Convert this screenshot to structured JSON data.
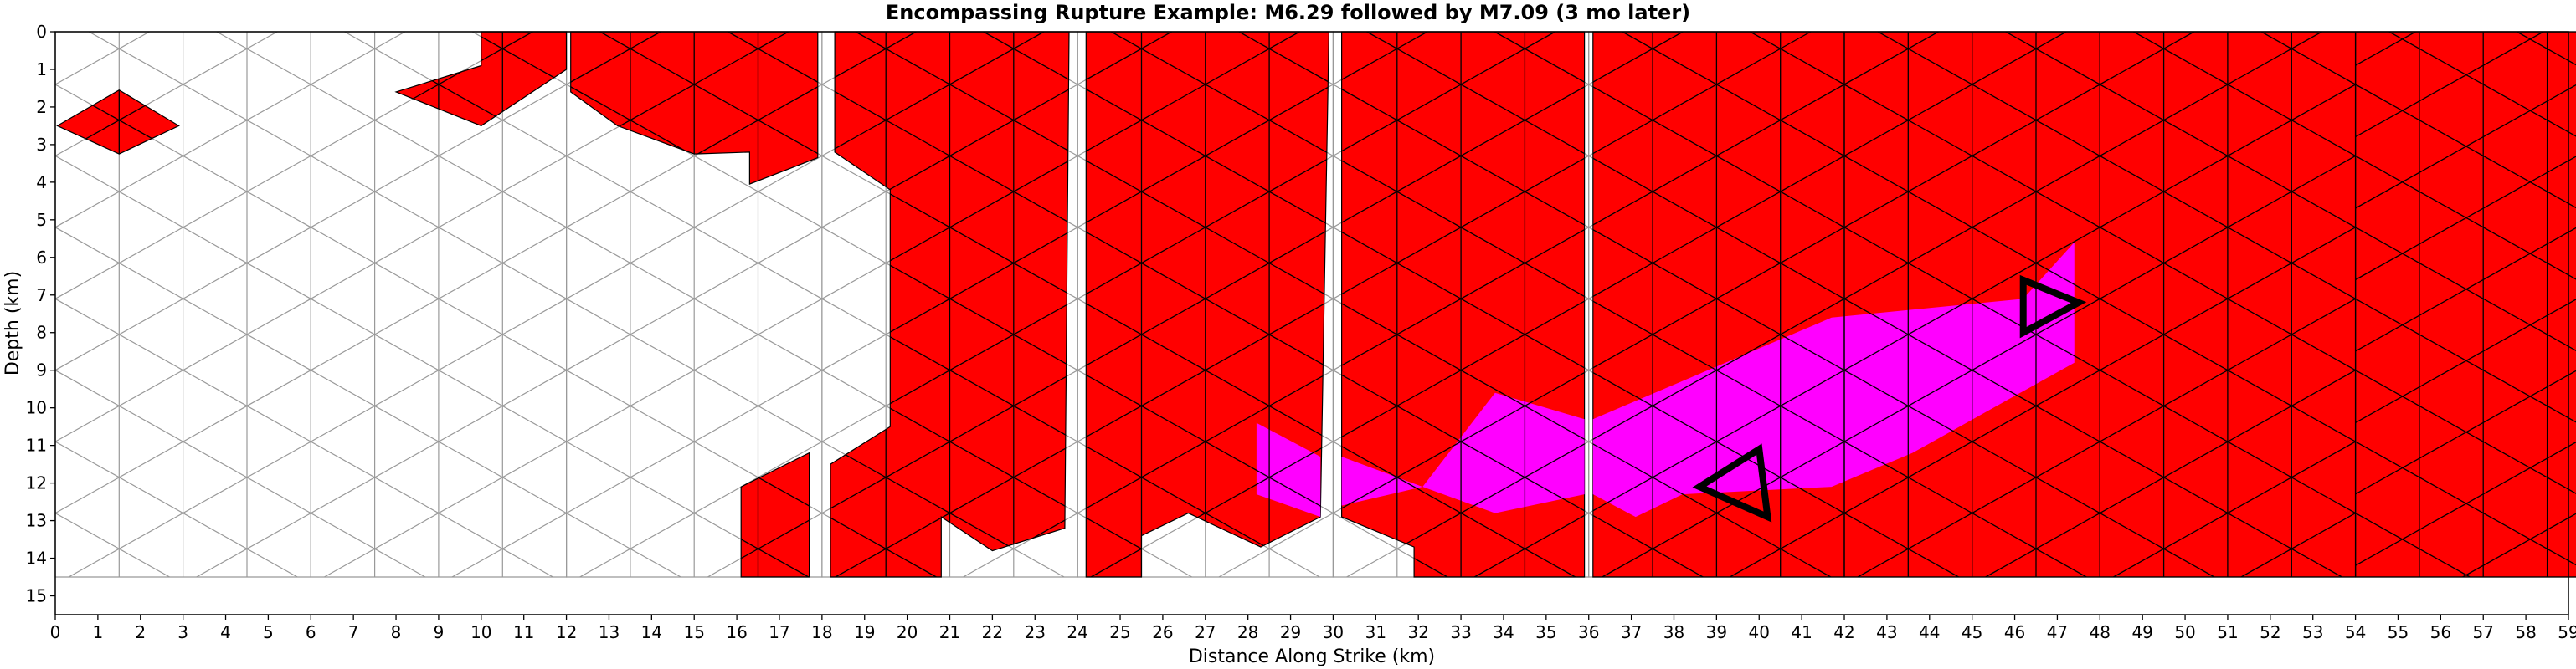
{
  "chart_data": {
    "type": "heatmap",
    "title": "Encompassing Rupture Example: M6.29 followed by M7.09 (3 mo later)",
    "xlabel": "Distance Along Strike (km)",
    "ylabel": "Depth (km)",
    "xlim": [
      0,
      59
    ],
    "ylim": [
      15.5,
      0
    ],
    "x_ticks": [
      0,
      1,
      2,
      3,
      4,
      5,
      6,
      7,
      8,
      9,
      10,
      11,
      12,
      13,
      14,
      15,
      16,
      17,
      18,
      19,
      20,
      21,
      22,
      23,
      24,
      25,
      26,
      27,
      28,
      29,
      30,
      31,
      32,
      33,
      34,
      35,
      36,
      37,
      38,
      39,
      40,
      41,
      42,
      43,
      44,
      45,
      46,
      47,
      48,
      49,
      50,
      51,
      52,
      53,
      54,
      55,
      56,
      57,
      58,
      59
    ],
    "y_ticks": [
      0,
      1,
      2,
      3,
      4,
      5,
      6,
      7,
      8,
      9,
      10,
      11,
      12,
      13,
      14,
      15
    ],
    "grid": false,
    "colors": {
      "unruptured": "#ffffff",
      "unruptured_edge": "#999999",
      "first_rupture": "#ff0000",
      "second_rupture": "#ff00ff",
      "ruptured_edge": "#000000",
      "hypocenter_marker": "#000000"
    },
    "depth_bottom": 14.5,
    "sections": [
      {
        "x0": 0,
        "x1": 6
      },
      {
        "x0": 6,
        "x1": 12
      },
      {
        "x0": 12,
        "x1": 18
      },
      {
        "x0": 18,
        "x1": 24
      },
      {
        "x0": 24,
        "x1": 30
      },
      {
        "x0": 30,
        "x1": 36
      },
      {
        "x0": 36,
        "x1": 42
      },
      {
        "x0": 42,
        "x1": 48
      },
      {
        "x0": 48,
        "x1": 54
      },
      {
        "x0": 54,
        "x1": 59.2
      }
    ],
    "red_regions": [
      {
        "name": "first-rupture-patch-a",
        "points": [
          [
            0.05,
            2.5
          ],
          [
            1.5,
            1.55
          ],
          [
            2.9,
            2.5
          ],
          [
            1.5,
            3.25
          ]
        ]
      },
      {
        "name": "first-rupture-patch-b",
        "points": [
          [
            10,
            0
          ],
          [
            12,
            0
          ],
          [
            12,
            1
          ],
          [
            10,
            2.5
          ],
          [
            8,
            1.6
          ],
          [
            10,
            0.9
          ]
        ]
      },
      {
        "name": "first-rupture-patch-c",
        "points": [
          [
            12.1,
            0
          ],
          [
            17.9,
            0
          ],
          [
            17.9,
            3.35
          ],
          [
            16.3,
            4.05
          ],
          [
            16.3,
            3.2
          ],
          [
            15,
            3.25
          ],
          [
            13.2,
            2.5
          ],
          [
            12.1,
            1.6
          ]
        ]
      },
      {
        "name": "first-rupture-patch-d",
        "points": [
          [
            18.3,
            0
          ],
          [
            23.8,
            0
          ],
          [
            23.7,
            13.2
          ],
          [
            22,
            13.8
          ],
          [
            20.8,
            12.9
          ],
          [
            20.8,
            14.5
          ],
          [
            18.2,
            14.5
          ],
          [
            18.2,
            11.5
          ],
          [
            19.6,
            10.5
          ],
          [
            19.6,
            4.2
          ],
          [
            18.3,
            3.2
          ]
        ]
      },
      {
        "name": "first-rupture-patch-e",
        "points": [
          [
            16.1,
            12.1
          ],
          [
            17.7,
            11.2
          ],
          [
            17.7,
            14.5
          ],
          [
            16.1,
            14.5
          ]
        ]
      },
      {
        "name": "first-rupture-patch-f",
        "points": [
          [
            24.2,
            0
          ],
          [
            29.9,
            0
          ],
          [
            29.7,
            12.9
          ],
          [
            28.3,
            13.7
          ],
          [
            26.6,
            12.8
          ],
          [
            25.5,
            13.4
          ],
          [
            25.5,
            14.5
          ],
          [
            24.2,
            14.5
          ]
        ]
      },
      {
        "name": "first-rupture-patch-g",
        "points": [
          [
            30.2,
            0
          ],
          [
            35.9,
            0
          ],
          [
            35.9,
            14.5
          ],
          [
            31.9,
            14.5
          ],
          [
            31.9,
            13.7
          ],
          [
            30.2,
            12.9
          ]
        ]
      },
      {
        "name": "first-rupture-patch-h",
        "points": [
          [
            36.1,
            0
          ],
          [
            59.2,
            0
          ],
          [
            59.2,
            14.5
          ],
          [
            36.1,
            14.5
          ]
        ]
      }
    ],
    "magenta_regions": [
      {
        "name": "second-rupture-patch-a",
        "points": [
          [
            28.2,
            10.4
          ],
          [
            29.7,
            11.3
          ],
          [
            29.7,
            12.9
          ],
          [
            28.2,
            12.3
          ]
        ]
      },
      {
        "name": "second-rupture-patch-b",
        "points": [
          [
            30.2,
            11.3
          ],
          [
            30.2,
            12.6
          ],
          [
            32.1,
            12.1
          ],
          [
            33.8,
            12.8
          ],
          [
            35.9,
            12.3
          ],
          [
            35.9,
            10.3
          ],
          [
            33.8,
            9.6
          ],
          [
            32.1,
            12.1
          ]
        ]
      },
      {
        "name": "second-rupture-patch-c",
        "points": [
          [
            36.1,
            10.3
          ],
          [
            41.7,
            7.6
          ],
          [
            46.2,
            7.1
          ],
          [
            47.4,
            5.6
          ],
          [
            47.4,
            8.8
          ],
          [
            43.6,
            11.2
          ],
          [
            41.7,
            12.1
          ],
          [
            38.2,
            12.3
          ],
          [
            37.1,
            12.9
          ],
          [
            36.1,
            12.3
          ]
        ]
      }
    ],
    "hypocenters": [
      {
        "points": [
          [
            38.6,
            12.1
          ],
          [
            40,
            11.1
          ],
          [
            40.2,
            12.9
          ]
        ]
      },
      {
        "points": [
          [
            46.2,
            6.6
          ],
          [
            47.5,
            7.2
          ],
          [
            46.2,
            8
          ]
        ]
      }
    ]
  }
}
